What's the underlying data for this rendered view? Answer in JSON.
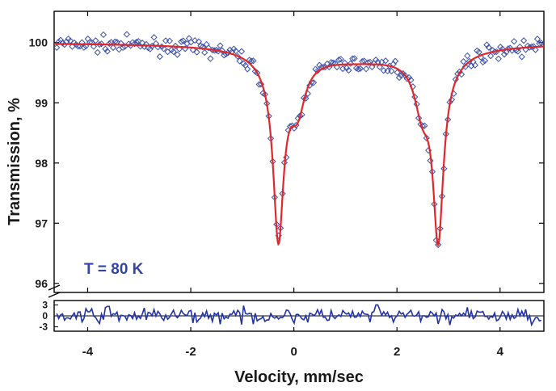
{
  "chart_data": {
    "type": "scatter",
    "title": "",
    "xlabel": "Velocity, mm/sec",
    "ylabel": "Transmission, %",
    "annotation": "T = 80 K",
    "xlim": [
      -4.65,
      4.85
    ],
    "ylim": [
      95.85,
      100.52
    ],
    "x_ticks": [
      -4,
      -2,
      0,
      2,
      4
    ],
    "y_ticks": [
      96,
      97,
      98,
      99,
      100
    ],
    "x_tick_labels": [
      "-4",
      "-2",
      "0",
      "2",
      "4"
    ],
    "y_tick_labels": [
      "96",
      "97",
      "98",
      "99",
      "100"
    ],
    "residual_ylim": [
      -4.2,
      4.2
    ],
    "residual_ticks": [
      3,
      0,
      -3
    ],
    "residual_tick_labels": [
      "3",
      "0",
      "-3"
    ],
    "fit_model": {
      "baseline": 100.0,
      "components": [
        {
          "center": -0.3,
          "depth": 2.8,
          "hwhm": 0.12
        },
        {
          "center": 2.8,
          "depth": 2.78,
          "hwhm": 0.12
        },
        {
          "center": 0.07,
          "depth": 0.75,
          "hwhm": 0.18
        },
        {
          "center": 2.49,
          "depth": 0.72,
          "hwhm": 0.18
        },
        {
          "center": -0.3,
          "depth": 0.28,
          "hwhm": 0.45
        },
        {
          "center": 2.8,
          "depth": 0.28,
          "hwhm": 0.45
        },
        {
          "center": 1.25,
          "depth": 0.25,
          "hwhm": 1.4
        }
      ]
    },
    "series": [
      {
        "name": "measured",
        "marker": "open-diamond",
        "color": "#3a4fa8",
        "x_range": [
          -4.6,
          4.8
        ],
        "n_points": 250,
        "noise_pp": 0.12
      },
      {
        "name": "fit",
        "style": "line",
        "color": "#e0282a"
      },
      {
        "name": "residual",
        "style": "line",
        "color": "#2233aa",
        "x_range": [
          -4.6,
          4.8
        ],
        "n_points": 250,
        "amplitude": 1.0
      }
    ],
    "colors": {
      "frame": "#000000",
      "text": "#1a1a1a",
      "annotation": "#3344a6"
    }
  }
}
